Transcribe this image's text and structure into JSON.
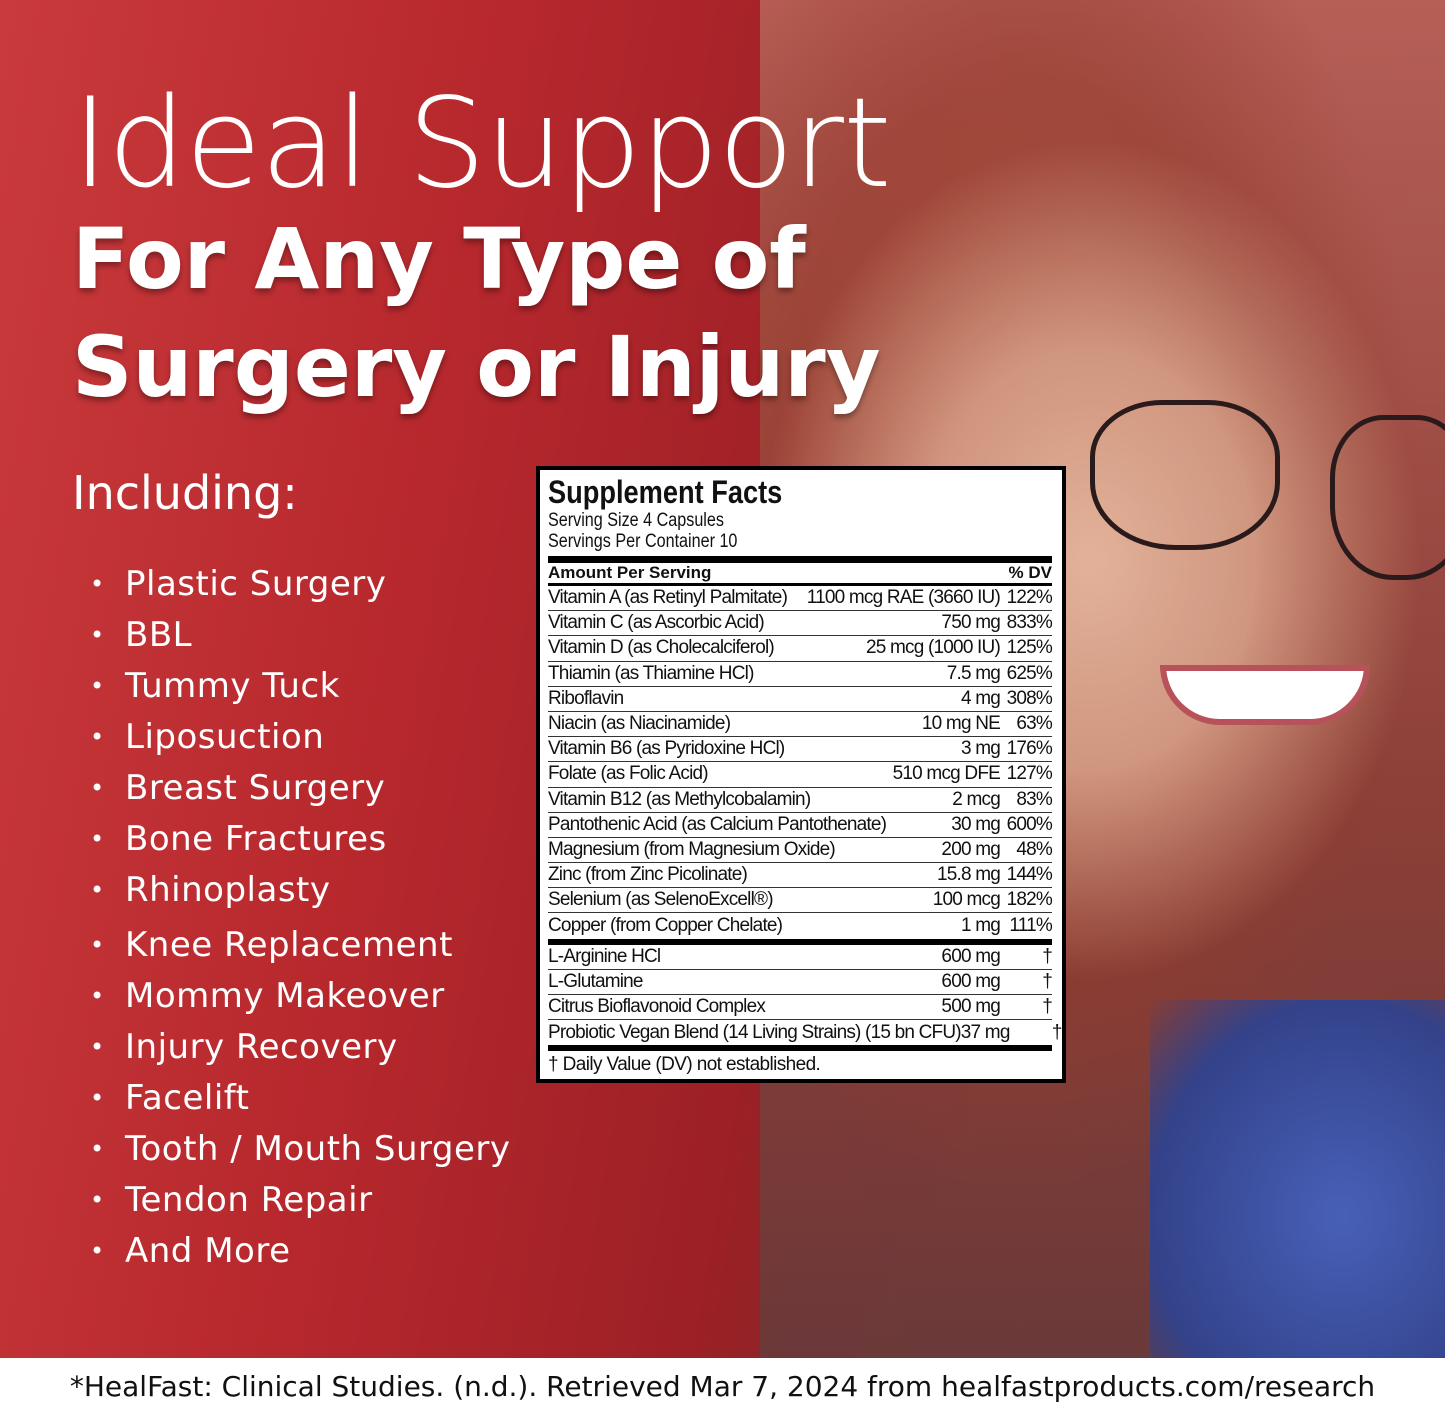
{
  "headline": {
    "line1": "Ideal Support",
    "line2": "For Any Type of",
    "line3": "Surgery or Injury"
  },
  "including_label": "Including:",
  "bullet": "•",
  "procedures": [
    "Plastic Surgery",
    "BBL",
    "Tummy Tuck",
    "Liposuction",
    "Breast Surgery",
    "Bone Fractures",
    "Rhinoplasty",
    "Knee Replacement",
    "Mommy Makeover",
    "Injury Recovery",
    "Facelift",
    "Tooth / Mouth Surgery",
    "Tendon Repair",
    "And More"
  ],
  "supplement_facts": {
    "title": "Supplement Facts",
    "serving_size": "Serving Size 4 Capsules",
    "servings_per_container": "Servings Per Container 10",
    "header_amount": "Amount Per Serving",
    "header_dv": "% DV",
    "vitamins": [
      {
        "name": "Vitamin A (as Retinyl Palmitate)",
        "amount": "1100 mcg RAE (3660 IU)",
        "dv": "122%"
      },
      {
        "name": "Vitamin C (as Ascorbic Acid)",
        "amount": "750 mg",
        "dv": "833%"
      },
      {
        "name": "Vitamin D (as Cholecalciferol)",
        "amount": "25 mcg (1000 IU)",
        "dv": "125%"
      },
      {
        "name": "Thiamin (as Thiamine HCl)",
        "amount": "7.5 mg",
        "dv": "625%"
      },
      {
        "name": "Riboflavin",
        "amount": "4 mg",
        "dv": "308%"
      },
      {
        "name": "Niacin (as Niacinamide)",
        "amount": "10 mg NE",
        "dv": "63%"
      },
      {
        "name": "Vitamin B6 (as Pyridoxine HCl)",
        "amount": "3 mg",
        "dv": "176%"
      },
      {
        "name": "Folate (as Folic Acid)",
        "amount": "510 mcg DFE",
        "dv": "127%"
      },
      {
        "name": "Vitamin B12 (as Methylcobalamin)",
        "amount": "2 mcg",
        "dv": "83%"
      },
      {
        "name": "Pantothenic Acid (as Calcium Pantothenate)",
        "amount": "30 mg",
        "dv": "600%"
      },
      {
        "name": "Magnesium (from Magnesium Oxide)",
        "amount": "200 mg",
        "dv": "48%"
      },
      {
        "name": "Zinc (from Zinc Picolinate)",
        "amount": "15.8 mg",
        "dv": "144%"
      },
      {
        "name": "Selenium (as SelenoExcell®)",
        "amount": "100 mcg",
        "dv": "182%"
      },
      {
        "name": "Copper (from Copper Chelate)",
        "amount": "1 mg",
        "dv": "111%"
      }
    ],
    "other": [
      {
        "name": "L-Arginine HCl",
        "amount": "600 mg",
        "dv": "†"
      },
      {
        "name": "L-Glutamine",
        "amount": "600 mg",
        "dv": "†"
      },
      {
        "name": "Citrus Bioflavonoid Complex",
        "amount": "500 mg",
        "dv": "†"
      },
      {
        "name": "Probiotic Vegan Blend (14 Living Strains) (15 bn CFU)",
        "amount": "37 mg",
        "dv": "†"
      }
    ],
    "footnote": "† Daily Value (DV) not established."
  },
  "footer": "*HealFast: Clinical Studies. (n.d.). Retrieved Mar 7, 2024 from healfastproducts.com/research",
  "colors": {
    "background_red": "#b7282d",
    "text": "#ffffff"
  }
}
